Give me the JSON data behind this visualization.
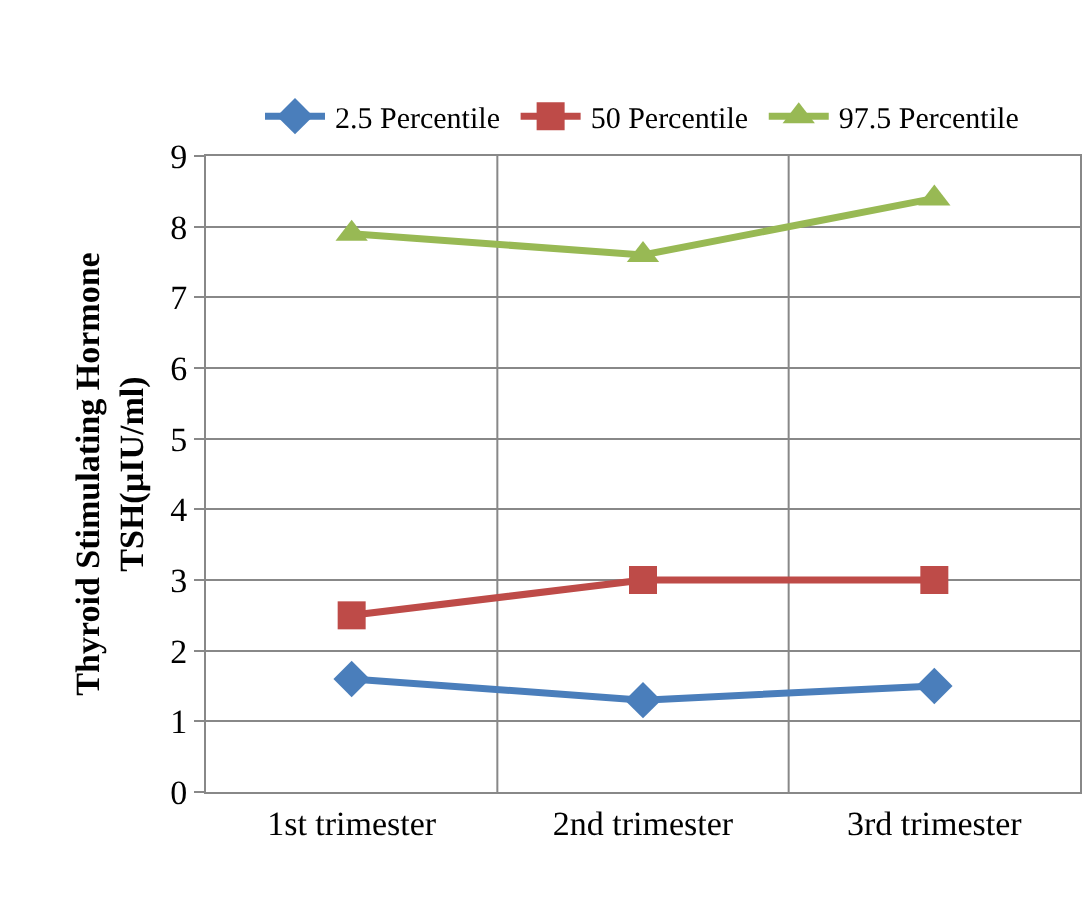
{
  "chart_data": {
    "type": "line",
    "ylabel": "Thyroid Stimulating Hormone\nTSH(µIU/ml)",
    "categories": [
      "1st trimester",
      "2nd trimester",
      "3rd trimester"
    ],
    "series": [
      {
        "name": "2.5 Percentile",
        "color": "#4a7ebb",
        "marker": "diamond",
        "values": [
          1.6,
          1.3,
          1.5
        ]
      },
      {
        "name": "50 Percentile",
        "color": "#be4b48",
        "marker": "square",
        "values": [
          2.5,
          3.0,
          3.0
        ]
      },
      {
        "name": "97.5 Percentile",
        "color": "#98b954",
        "marker": "triangle",
        "values": [
          7.9,
          7.6,
          8.4
        ]
      }
    ],
    "ylim": [
      0,
      9
    ],
    "yticks": [
      0,
      1,
      2,
      3,
      4,
      5,
      6,
      7,
      8,
      9
    ],
    "grid": true,
    "legend": "top",
    "line_style": "solid"
  }
}
